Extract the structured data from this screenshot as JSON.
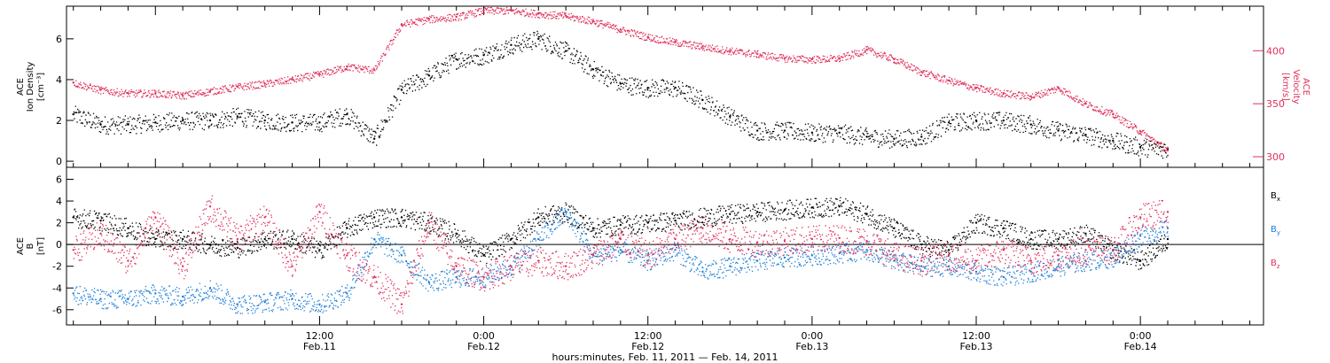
{
  "colors": {
    "density": "#000000",
    "velocity": "#e0305a",
    "bx": "#000000",
    "by": "#1f7fd6",
    "bz": "#e0305a"
  },
  "chart_data": [
    {
      "type": "scatter",
      "panel": "top",
      "ylabel_left": [
        "ACE",
        "Ion Density",
        "[cm⁻³]"
      ],
      "ylabel_right": [
        "ACE",
        "Velocity",
        "[km/s]"
      ],
      "x_range_hours": [
        -6.5,
        81
      ],
      "ylim_left": [
        -0.3,
        7.6
      ],
      "yticks_left": [
        "0",
        "2",
        "4",
        "6"
      ],
      "ylim_right": [
        290,
        442
      ],
      "yticks_right": [
        "300",
        "350",
        "400"
      ],
      "series": [
        {
          "axis": "left",
          "color": "density",
          "x": [
            -6,
            -4,
            -2,
            0,
            2,
            4,
            6,
            8,
            10,
            12,
            14,
            16,
            18,
            20,
            22,
            24,
            26,
            28,
            30,
            32,
            34,
            36,
            38,
            40,
            42,
            44,
            46,
            48,
            50,
            52,
            54,
            56,
            58,
            60,
            62,
            64,
            66,
            68,
            70,
            72,
            74
          ],
          "y": [
            2.3,
            1.8,
            1.8,
            1.9,
            2.0,
            2.0,
            2.2,
            2.0,
            1.9,
            1.9,
            2.3,
            1.1,
            3.5,
            4.2,
            5.0,
            5.2,
            5.7,
            6.0,
            5.4,
            4.5,
            3.8,
            3.6,
            3.6,
            3.0,
            2.2,
            1.5,
            1.5,
            1.4,
            1.4,
            1.2,
            1.1,
            1.2,
            1.9,
            2.0,
            2.0,
            1.8,
            1.5,
            1.3,
            1.0,
            0.7,
            0.6
          ]
        },
        {
          "axis": "right",
          "color": "velocity",
          "x": [
            -6,
            -4,
            -2,
            0,
            2,
            4,
            6,
            8,
            10,
            12,
            14,
            16,
            18,
            20,
            22,
            24,
            26,
            28,
            30,
            32,
            34,
            36,
            38,
            40,
            42,
            44,
            46,
            48,
            50,
            52,
            54,
            56,
            58,
            60,
            62,
            64,
            66,
            68,
            70,
            72,
            74
          ],
          "y": [
            370,
            363,
            360,
            360,
            358,
            362,
            366,
            369,
            373,
            378,
            385,
            382,
            425,
            430,
            432,
            438,
            438,
            435,
            433,
            428,
            420,
            413,
            408,
            404,
            400,
            397,
            393,
            392,
            393,
            401,
            392,
            380,
            372,
            365,
            360,
            357,
            365,
            350,
            340,
            324,
            306
          ]
        }
      ]
    },
    {
      "type": "scatter",
      "panel": "bottom",
      "ylabel_left": [
        "ACE",
        "B",
        "[nT]"
      ],
      "x_range_hours": [
        -6.5,
        81
      ],
      "ylim": [
        -7.4,
        7.1
      ],
      "yticks": [
        "-6",
        "-4",
        "-2",
        "0",
        "2",
        "4",
        "6"
      ],
      "series": [
        {
          "name": "Bx",
          "color": "bx",
          "x": [
            -6,
            -4,
            -2,
            0,
            2,
            4,
            6,
            8,
            10,
            12,
            14,
            16,
            18,
            20,
            22,
            24,
            26,
            28,
            30,
            32,
            34,
            36,
            38,
            40,
            42,
            44,
            46,
            48,
            50,
            52,
            54,
            56,
            58,
            60,
            62,
            64,
            66,
            68,
            70,
            72,
            74
          ],
          "y": [
            2.5,
            2.2,
            1.5,
            0.5,
            0.5,
            0.0,
            -0.3,
            0.5,
            0.5,
            -0.5,
            1.5,
            2.5,
            2.5,
            2.0,
            1.0,
            -1.0,
            0.5,
            2.5,
            3.0,
            1.5,
            1.8,
            2.0,
            2.2,
            2.5,
            2.8,
            3.0,
            3.2,
            3.4,
            3.5,
            2.8,
            1.5,
            0.0,
            -0.5,
            2.0,
            1.5,
            0.5,
            0.5,
            1.0,
            -0.5,
            -1.5,
            0.5
          ]
        },
        {
          "name": "By",
          "color": "by",
          "x": [
            -6,
            -4,
            -2,
            0,
            2,
            4,
            6,
            8,
            10,
            12,
            14,
            16,
            18,
            20,
            22,
            24,
            26,
            28,
            30,
            32,
            34,
            36,
            38,
            40,
            42,
            44,
            46,
            48,
            50,
            52,
            54,
            56,
            58,
            60,
            62,
            64,
            66,
            68,
            70,
            72,
            74
          ],
          "y": [
            -4.5,
            -5.0,
            -5.0,
            -4.5,
            -4.8,
            -4.0,
            -5.5,
            -5.3,
            -5.0,
            -5.5,
            -4.5,
            0.5,
            -1.0,
            -3.5,
            -3.0,
            -3.0,
            -2.0,
            0.5,
            3.0,
            -1.0,
            -0.5,
            -1.5,
            -0.5,
            -2.5,
            -2.0,
            -1.5,
            -1.2,
            -1.0,
            -0.8,
            -0.5,
            -1.5,
            -2.0,
            -2.0,
            -2.5,
            -3.0,
            -2.5,
            -2.0,
            -1.5,
            -1.2,
            0.8,
            1.5
          ]
        },
        {
          "name": "Bz",
          "color": "bz",
          "x": [
            -6,
            -4,
            -2,
            0,
            2,
            4,
            6,
            8,
            10,
            12,
            14,
            16,
            18,
            20,
            22,
            24,
            26,
            28,
            30,
            32,
            34,
            36,
            38,
            40,
            42,
            44,
            46,
            48,
            50,
            52,
            54,
            56,
            58,
            60,
            62,
            64,
            66,
            68,
            70,
            72,
            74
          ],
          "y": [
            -0.5,
            1.0,
            -1.5,
            2.5,
            -2.0,
            3.5,
            0.5,
            2.5,
            -2.0,
            3.0,
            -1.0,
            -3.0,
            -5.5,
            2.0,
            -2.0,
            -3.0,
            -2.0,
            -1.5,
            -2.0,
            -1.0,
            0.5,
            -1.0,
            0.5,
            1.5,
            0.5,
            0.2,
            0.3,
            0.5,
            0.6,
            0.3,
            -1.0,
            -1.5,
            -1.0,
            -1.5,
            -0.5,
            -1.5,
            -1.0,
            -0.5,
            -0.5,
            2.5,
            3.0
          ]
        }
      ]
    }
  ],
  "legend": {
    "bx_main": "B",
    "bx_sub": "x",
    "by_main": "B",
    "by_sub": "y",
    "bz_main": "B",
    "bz_sub": "z"
  },
  "x_axis": {
    "ticks": [
      {
        "hour": 12,
        "time": "12:00",
        "date": "Feb.11"
      },
      {
        "hour": 24,
        "time": "0:00",
        "date": "Feb.12"
      },
      {
        "hour": 36,
        "time": "12:00",
        "date": "Feb.12"
      },
      {
        "hour": 48,
        "time": "0:00",
        "date": "Feb.13"
      },
      {
        "hour": 60,
        "time": "12:00",
        "date": "Feb.13"
      },
      {
        "hour": 72,
        "time": "0:00",
        "date": "Feb.14"
      }
    ],
    "title": "hours:minutes, Feb. 11, 2011 — Feb. 14, 2011"
  }
}
